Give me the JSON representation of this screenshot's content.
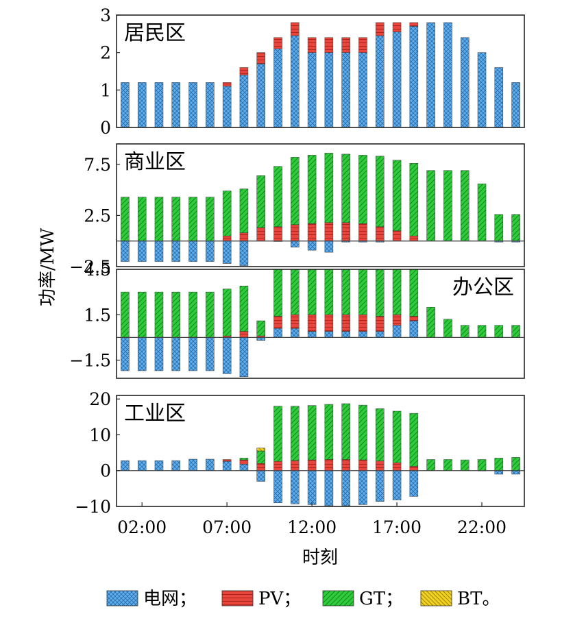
{
  "chart_data": {
    "type": "bar",
    "stacked": true,
    "xlabel": "时刻",
    "ylabel": "功率/MW",
    "hours": [
      1,
      2,
      3,
      4,
      5,
      6,
      7,
      8,
      9,
      10,
      11,
      12,
      13,
      14,
      15,
      16,
      17,
      18,
      19,
      20,
      21,
      22,
      23,
      24
    ],
    "x_ticks": [
      {
        "hour": 2,
        "label": "02:00"
      },
      {
        "hour": 7,
        "label": "07:00"
      },
      {
        "hour": 12,
        "label": "12:00"
      },
      {
        "hour": 17,
        "label": "17:00"
      },
      {
        "hour": 22,
        "label": "22:00"
      }
    ],
    "legend": [
      {
        "key": "grid",
        "label": "电网；"
      },
      {
        "key": "pv",
        "label": "PV；"
      },
      {
        "key": "gt",
        "label": "GT；"
      },
      {
        "key": "bt",
        "label": "BT。"
      }
    ],
    "colors": {
      "grid": "#5aaef2",
      "pv": "#e8453c",
      "gt": "#2ecc3a",
      "bt": "#f3d21f"
    },
    "panels": [
      {
        "title": "居民区",
        "title_pos": "top-left",
        "ylim": [
          0,
          3
        ],
        "yticks": [
          {
            "v": 0,
            "label": "0"
          },
          {
            "v": 1,
            "label": "1"
          },
          {
            "v": 2,
            "label": "2"
          },
          {
            "v": 3,
            "label": "3"
          }
        ],
        "series": {
          "grid": [
            1.2,
            1.2,
            1.2,
            1.2,
            1.2,
            1.2,
            1.1,
            1.4,
            1.7,
            2.1,
            2.45,
            2.0,
            2.0,
            2.0,
            2.0,
            2.45,
            2.55,
            2.7,
            2.8,
            2.8,
            2.4,
            2.0,
            1.6,
            1.2
          ],
          "pv": [
            0,
            0,
            0,
            0,
            0,
            0,
            0.1,
            0.2,
            0.3,
            0.3,
            0.35,
            0.4,
            0.4,
            0.4,
            0.4,
            0.35,
            0.25,
            0.1,
            0,
            0,
            0,
            0,
            0,
            0
          ],
          "gt": [
            0,
            0,
            0,
            0,
            0,
            0,
            0,
            0,
            0,
            0,
            0,
            0,
            0,
            0,
            0,
            0,
            0,
            0,
            0,
            0,
            0,
            0,
            0,
            0
          ],
          "bt": [
            0,
            0,
            0,
            0,
            0,
            0,
            0,
            0,
            0,
            0,
            0,
            0,
            0,
            0,
            0,
            0,
            0,
            0,
            0,
            0,
            0,
            0,
            0,
            0
          ]
        }
      },
      {
        "title": "商业区",
        "title_pos": "top-left",
        "ylim": [
          -2.5,
          9.5
        ],
        "yticks": [
          {
            "v": -2.5,
            "label": "−2.5"
          },
          {
            "v": 2.5,
            "label": "2.5"
          },
          {
            "v": 7.5,
            "label": "7.5"
          }
        ],
        "series": {
          "grid": [
            -2.0,
            -2.0,
            -2.0,
            -2.0,
            -2.0,
            -2.0,
            -2.2,
            -2.4,
            0,
            -0.05,
            -0.6,
            -0.9,
            -1.1,
            -0.1,
            -0.1,
            -0.1,
            0,
            0,
            0,
            0,
            0,
            0,
            -0.1,
            -0.1
          ],
          "pv": [
            0,
            0,
            0,
            0,
            0,
            0,
            0.5,
            0.8,
            1.3,
            1.4,
            1.6,
            1.7,
            1.8,
            1.8,
            1.7,
            1.4,
            1.0,
            0.5,
            0,
            0,
            0,
            0,
            0,
            0
          ],
          "gt": [
            4.3,
            4.3,
            4.3,
            4.3,
            4.3,
            4.3,
            4.4,
            4.3,
            5.1,
            5.9,
            6.6,
            6.7,
            6.8,
            6.7,
            6.7,
            6.9,
            6.9,
            7.1,
            6.9,
            6.9,
            6.9,
            5.6,
            2.6,
            2.6
          ],
          "bt": [
            0,
            0,
            0,
            0,
            0,
            0,
            0,
            0,
            0,
            0,
            0,
            0,
            0,
            0,
            0,
            0,
            0,
            0,
            0,
            0,
            0,
            0,
            0,
            0
          ]
        }
      },
      {
        "title": "办公区",
        "title_pos": "top-right",
        "ylim": [
          -2.7,
          4.5
        ],
        "yticks": [
          {
            "v": -1.5,
            "label": "−1.5"
          },
          {
            "v": 1.5,
            "label": "1.5"
          },
          {
            "v": 4.5,
            "label": "4.5"
          }
        ],
        "series": {
          "grid": [
            -2.2,
            -2.2,
            -2.2,
            -2.2,
            -2.2,
            -2.2,
            -2.4,
            -2.6,
            -0.2,
            0.6,
            0.6,
            0.4,
            0.4,
            0.4,
            0.4,
            0.4,
            0.8,
            1.1,
            0,
            0,
            0,
            0,
            0,
            0
          ],
          "pv": [
            0,
            0,
            0,
            0,
            0,
            0,
            0.1,
            0.4,
            0.1,
            0.8,
            0.9,
            1.1,
            1.1,
            1.1,
            1.1,
            1.0,
            0.7,
            0.3,
            0,
            0,
            0,
            0,
            0,
            0
          ],
          "gt": [
            3.0,
            3.0,
            3.0,
            3.0,
            3.0,
            3.0,
            3.1,
            3.0,
            1.0,
            3.1,
            3.0,
            3.0,
            3.0,
            3.0,
            3.0,
            3.1,
            3.0,
            3.1,
            2.0,
            1.2,
            0.8,
            0.8,
            0.8,
            0.8
          ],
          "bt": [
            0,
            0,
            0,
            0,
            0,
            0,
            0,
            0,
            0,
            0,
            0,
            0,
            0,
            0,
            0,
            0,
            0,
            0,
            0,
            0,
            0,
            0,
            0,
            0
          ]
        }
      },
      {
        "title": "工业区",
        "title_pos": "top-left",
        "ylim": [
          -10,
          21
        ],
        "yticks": [
          {
            "v": -10,
            "label": "−10"
          },
          {
            "v": 0,
            "label": "0"
          },
          {
            "v": 10,
            "label": "10"
          },
          {
            "v": 20,
            "label": "20"
          }
        ],
        "series": {
          "grid": [
            2.8,
            2.8,
            2.8,
            2.8,
            3.2,
            3.2,
            2.6,
            1.8,
            -3.0,
            -9.0,
            -9.3,
            -9.5,
            -9.8,
            -9.8,
            -9.5,
            -8.6,
            -8.2,
            -7.2,
            0,
            0,
            0,
            -0.1,
            -1.0,
            -1.0
          ],
          "pv": [
            0,
            0,
            0,
            0,
            0,
            0,
            0.5,
            1.2,
            2.0,
            2.6,
            2.8,
            3.0,
            3.1,
            3.1,
            3.0,
            2.7,
            2.2,
            1.2,
            0,
            0,
            0,
            0,
            0,
            0
          ],
          "gt": [
            0,
            0,
            0,
            0,
            0,
            0,
            0,
            0.5,
            3.5,
            15.4,
            15.2,
            15.2,
            15.4,
            15.6,
            15.3,
            14.6,
            14.4,
            14.8,
            3.1,
            3.1,
            3.0,
            3.1,
            3.5,
            3.7
          ],
          "bt": [
            0,
            0,
            0,
            0,
            0,
            0,
            0,
            0,
            0.8,
            0,
            0,
            0,
            0,
            0,
            0,
            0,
            0,
            0,
            0,
            0,
            0,
            0,
            0,
            0
          ]
        }
      }
    ]
  }
}
